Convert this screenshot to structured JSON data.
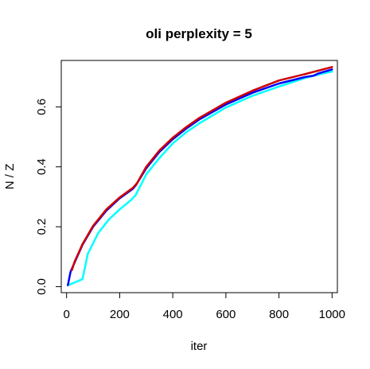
{
  "chart_data": {
    "type": "line",
    "title": "oli perplexity = 5",
    "xlabel": "iter",
    "ylabel": "N / Z",
    "xlim": [
      -20,
      1020
    ],
    "ylim": [
      -0.02,
      0.755
    ],
    "xticks": [
      "0",
      "200",
      "400",
      "600",
      "800",
      "1000"
    ],
    "yticks": [
      "0.0",
      "0.2",
      "0.4",
      "0.6"
    ],
    "grid": false,
    "series": [
      {
        "color": "#00ffff",
        "x": [
          5,
          20,
          60,
          80,
          120,
          160,
          200,
          240,
          260,
          300,
          350,
          400,
          450,
          500,
          600,
          700,
          800,
          900,
          950,
          1000
        ],
        "y": [
          0.005,
          0.01,
          0.025,
          0.11,
          0.18,
          0.225,
          0.258,
          0.287,
          0.305,
          0.375,
          0.43,
          0.478,
          0.515,
          0.545,
          0.598,
          0.637,
          0.668,
          0.697,
          0.708,
          0.718
        ]
      },
      {
        "color": "#0000ff",
        "x": [
          5,
          15,
          30,
          60,
          100,
          150,
          200,
          250,
          262,
          300,
          350,
          400,
          450,
          500,
          600,
          700,
          800,
          900,
          930,
          950,
          1000
        ],
        "y": [
          0.005,
          0.05,
          0.08,
          0.14,
          0.2,
          0.254,
          0.295,
          0.327,
          0.34,
          0.395,
          0.45,
          0.492,
          0.527,
          0.558,
          0.608,
          0.647,
          0.678,
          0.7,
          0.704,
          0.712,
          0.725
        ]
      },
      {
        "color": "#cc0000",
        "x": [
          20,
          30,
          60,
          100,
          150,
          200,
          250,
          265,
          300,
          350,
          400,
          450,
          500,
          600,
          700,
          800,
          900,
          1000
        ],
        "y": [
          0.055,
          0.083,
          0.142,
          0.203,
          0.258,
          0.298,
          0.33,
          0.345,
          0.4,
          0.455,
          0.497,
          0.532,
          0.563,
          0.614,
          0.654,
          0.688,
          0.71,
          0.733
        ]
      }
    ]
  }
}
